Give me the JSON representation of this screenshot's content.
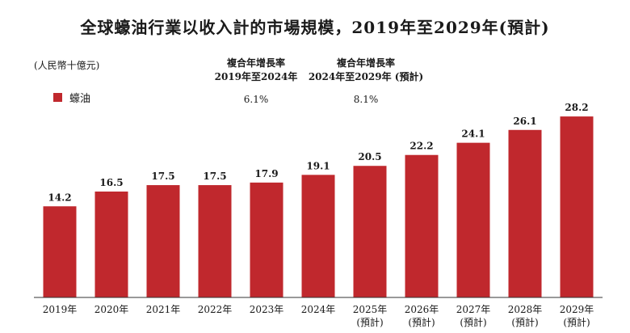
{
  "title": "全球蠔油行業以收入計的市場規模，2019年至2029年(預計)",
  "unit_label": "(人民幣十億元)",
  "cagr": [
    {
      "header_line1": "複合年增長率",
      "header_line2": "2019年至2024年",
      "value": "6.1%"
    },
    {
      "header_line1": "複合年增長率",
      "header_line2": "2024年至2029年 (預計)",
      "value": "8.1%"
    }
  ],
  "colors": {
    "bar": "#c0282d",
    "axis": "#333333"
  },
  "chart_data": {
    "type": "bar",
    "categories": [
      "2019年",
      "2020年",
      "2021年",
      "2022年",
      "2023年",
      "2024年",
      "2025年",
      "2026年",
      "2027年",
      "2028年",
      "2029年"
    ],
    "category_sublabels": [
      "",
      "",
      "",
      "",
      "",
      "",
      "(預計)",
      "(預計)",
      "(預計)",
      "(預計)",
      "(預計)"
    ],
    "series": [
      {
        "name": "蠔油",
        "values": [
          14.2,
          16.5,
          17.5,
          17.5,
          17.9,
          19.1,
          20.5,
          22.2,
          24.1,
          26.1,
          28.2
        ]
      }
    ],
    "ylabel": "(人民幣十億元)",
    "ylim": [
      0,
      30
    ],
    "grid": false,
    "legend": "top-left"
  }
}
